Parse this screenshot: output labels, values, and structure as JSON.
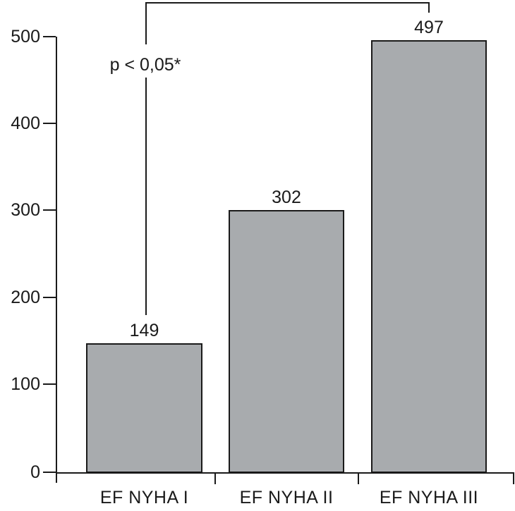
{
  "chart_data": {
    "type": "bar",
    "title": "",
    "xlabel": "",
    "ylabel": "",
    "categories": [
      "EF NYHA I",
      "EF NYHA II",
      "EF NYHA III"
    ],
    "values": [
      149,
      302,
      497
    ],
    "ylim": [
      0,
      500
    ],
    "y_ticks": [
      500,
      400,
      300,
      200,
      100,
      0
    ],
    "grid": "off",
    "legend": "none",
    "annotation": {
      "text": "p < 0,05*",
      "type": "significance-bracket",
      "compares": [
        "EF NYHA I",
        "EF NYHA III"
      ]
    },
    "colors": {
      "bar_fill": "#a8abae",
      "bar_border": "#1a1a1a",
      "axis": "#1a1a1a",
      "background": "#ffffff"
    }
  }
}
